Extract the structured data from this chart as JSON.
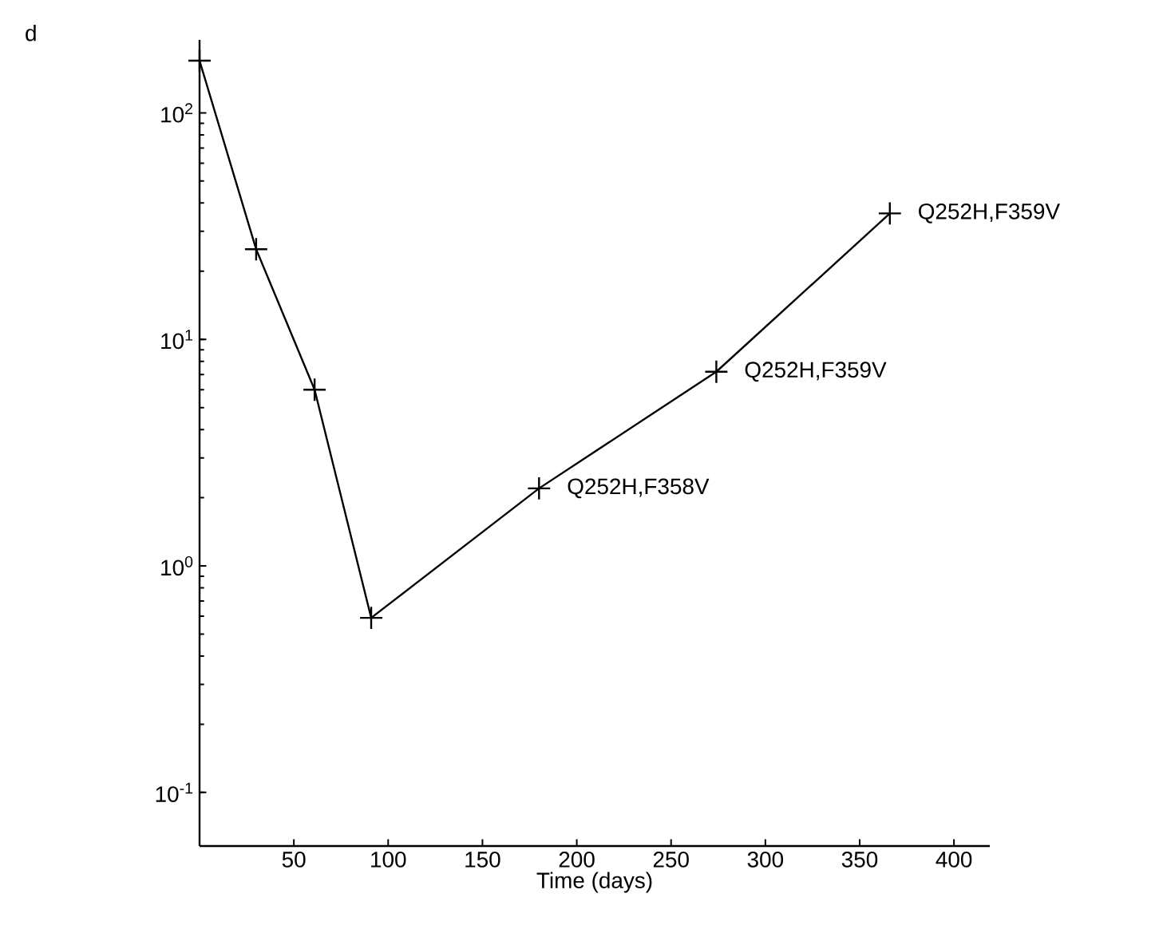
{
  "chart_data": {
    "type": "line",
    "xlabel": "Time (days)",
    "x": [
      0,
      30,
      61,
      91,
      180,
      274,
      366
    ],
    "series": [
      {
        "color": "#000000",
        "values": [
          170,
          25,
          6.0,
          0.59,
          2.2,
          7.2,
          36
        ]
      }
    ],
    "xlim": [
      0,
      419
    ],
    "xticks": [
      50,
      100,
      150,
      200,
      250,
      300,
      350,
      400
    ],
    "ylim": [
      0.058,
      210
    ],
    "log": "y",
    "yticks": [
      {
        "value": 0.1,
        "label": "10$^{-1}$"
      },
      {
        "value": 1,
        "label": "10$^{0}$"
      },
      {
        "value": 10,
        "label": "10$^{1}$"
      },
      {
        "value": 100,
        "label": "10$^{2}$"
      }
    ],
    "marker": "cross",
    "line_style": "solid",
    "annotations": [
      "d",
      {
        "text": "Q252H,F358V",
        "x": 180,
        "y": 2.2
      },
      {
        "text": "Q252H,F359V",
        "x": 274,
        "y": 7.2
      },
      {
        "text": "Q252H,F359V",
        "x": 366,
        "y": 36
      }
    ]
  }
}
